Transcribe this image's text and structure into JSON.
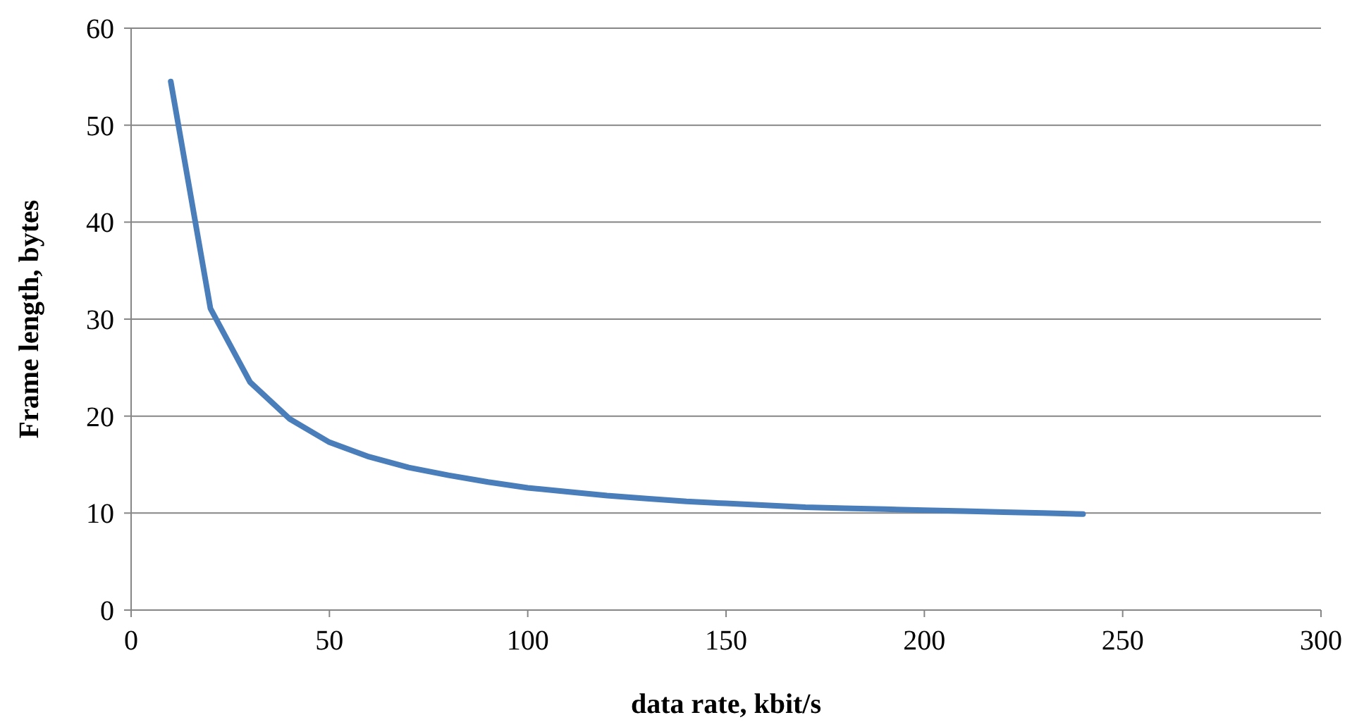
{
  "chart_data": {
    "type": "line",
    "xlabel": "data rate, kbit/s",
    "ylabel": "Frame length, bytes",
    "x": [
      10,
      20,
      30,
      40,
      50,
      60,
      70,
      80,
      90,
      100,
      110,
      120,
      130,
      140,
      150,
      160,
      170,
      180,
      190,
      200,
      210,
      220,
      230,
      240
    ],
    "series": [
      {
        "color": "#4a7ebb",
        "values": [
          54.5,
          31.1,
          23.5,
          19.7,
          17.3,
          15.8,
          14.7,
          13.9,
          13.2,
          12.6,
          12.2,
          11.8,
          11.5,
          11.2,
          11.0,
          10.8,
          10.6,
          10.5,
          10.4,
          10.3,
          10.2,
          10.1,
          10.0,
          9.9
        ]
      }
    ],
    "xlim": [
      0,
      300
    ],
    "xticks": [
      0,
      50,
      100,
      150,
      200,
      250,
      300
    ],
    "ylim": [
      0,
      60
    ],
    "yticks": [
      0,
      10,
      20,
      30,
      40,
      50,
      60
    ],
    "grid": "y",
    "marker": "none",
    "line_style": "solid"
  }
}
